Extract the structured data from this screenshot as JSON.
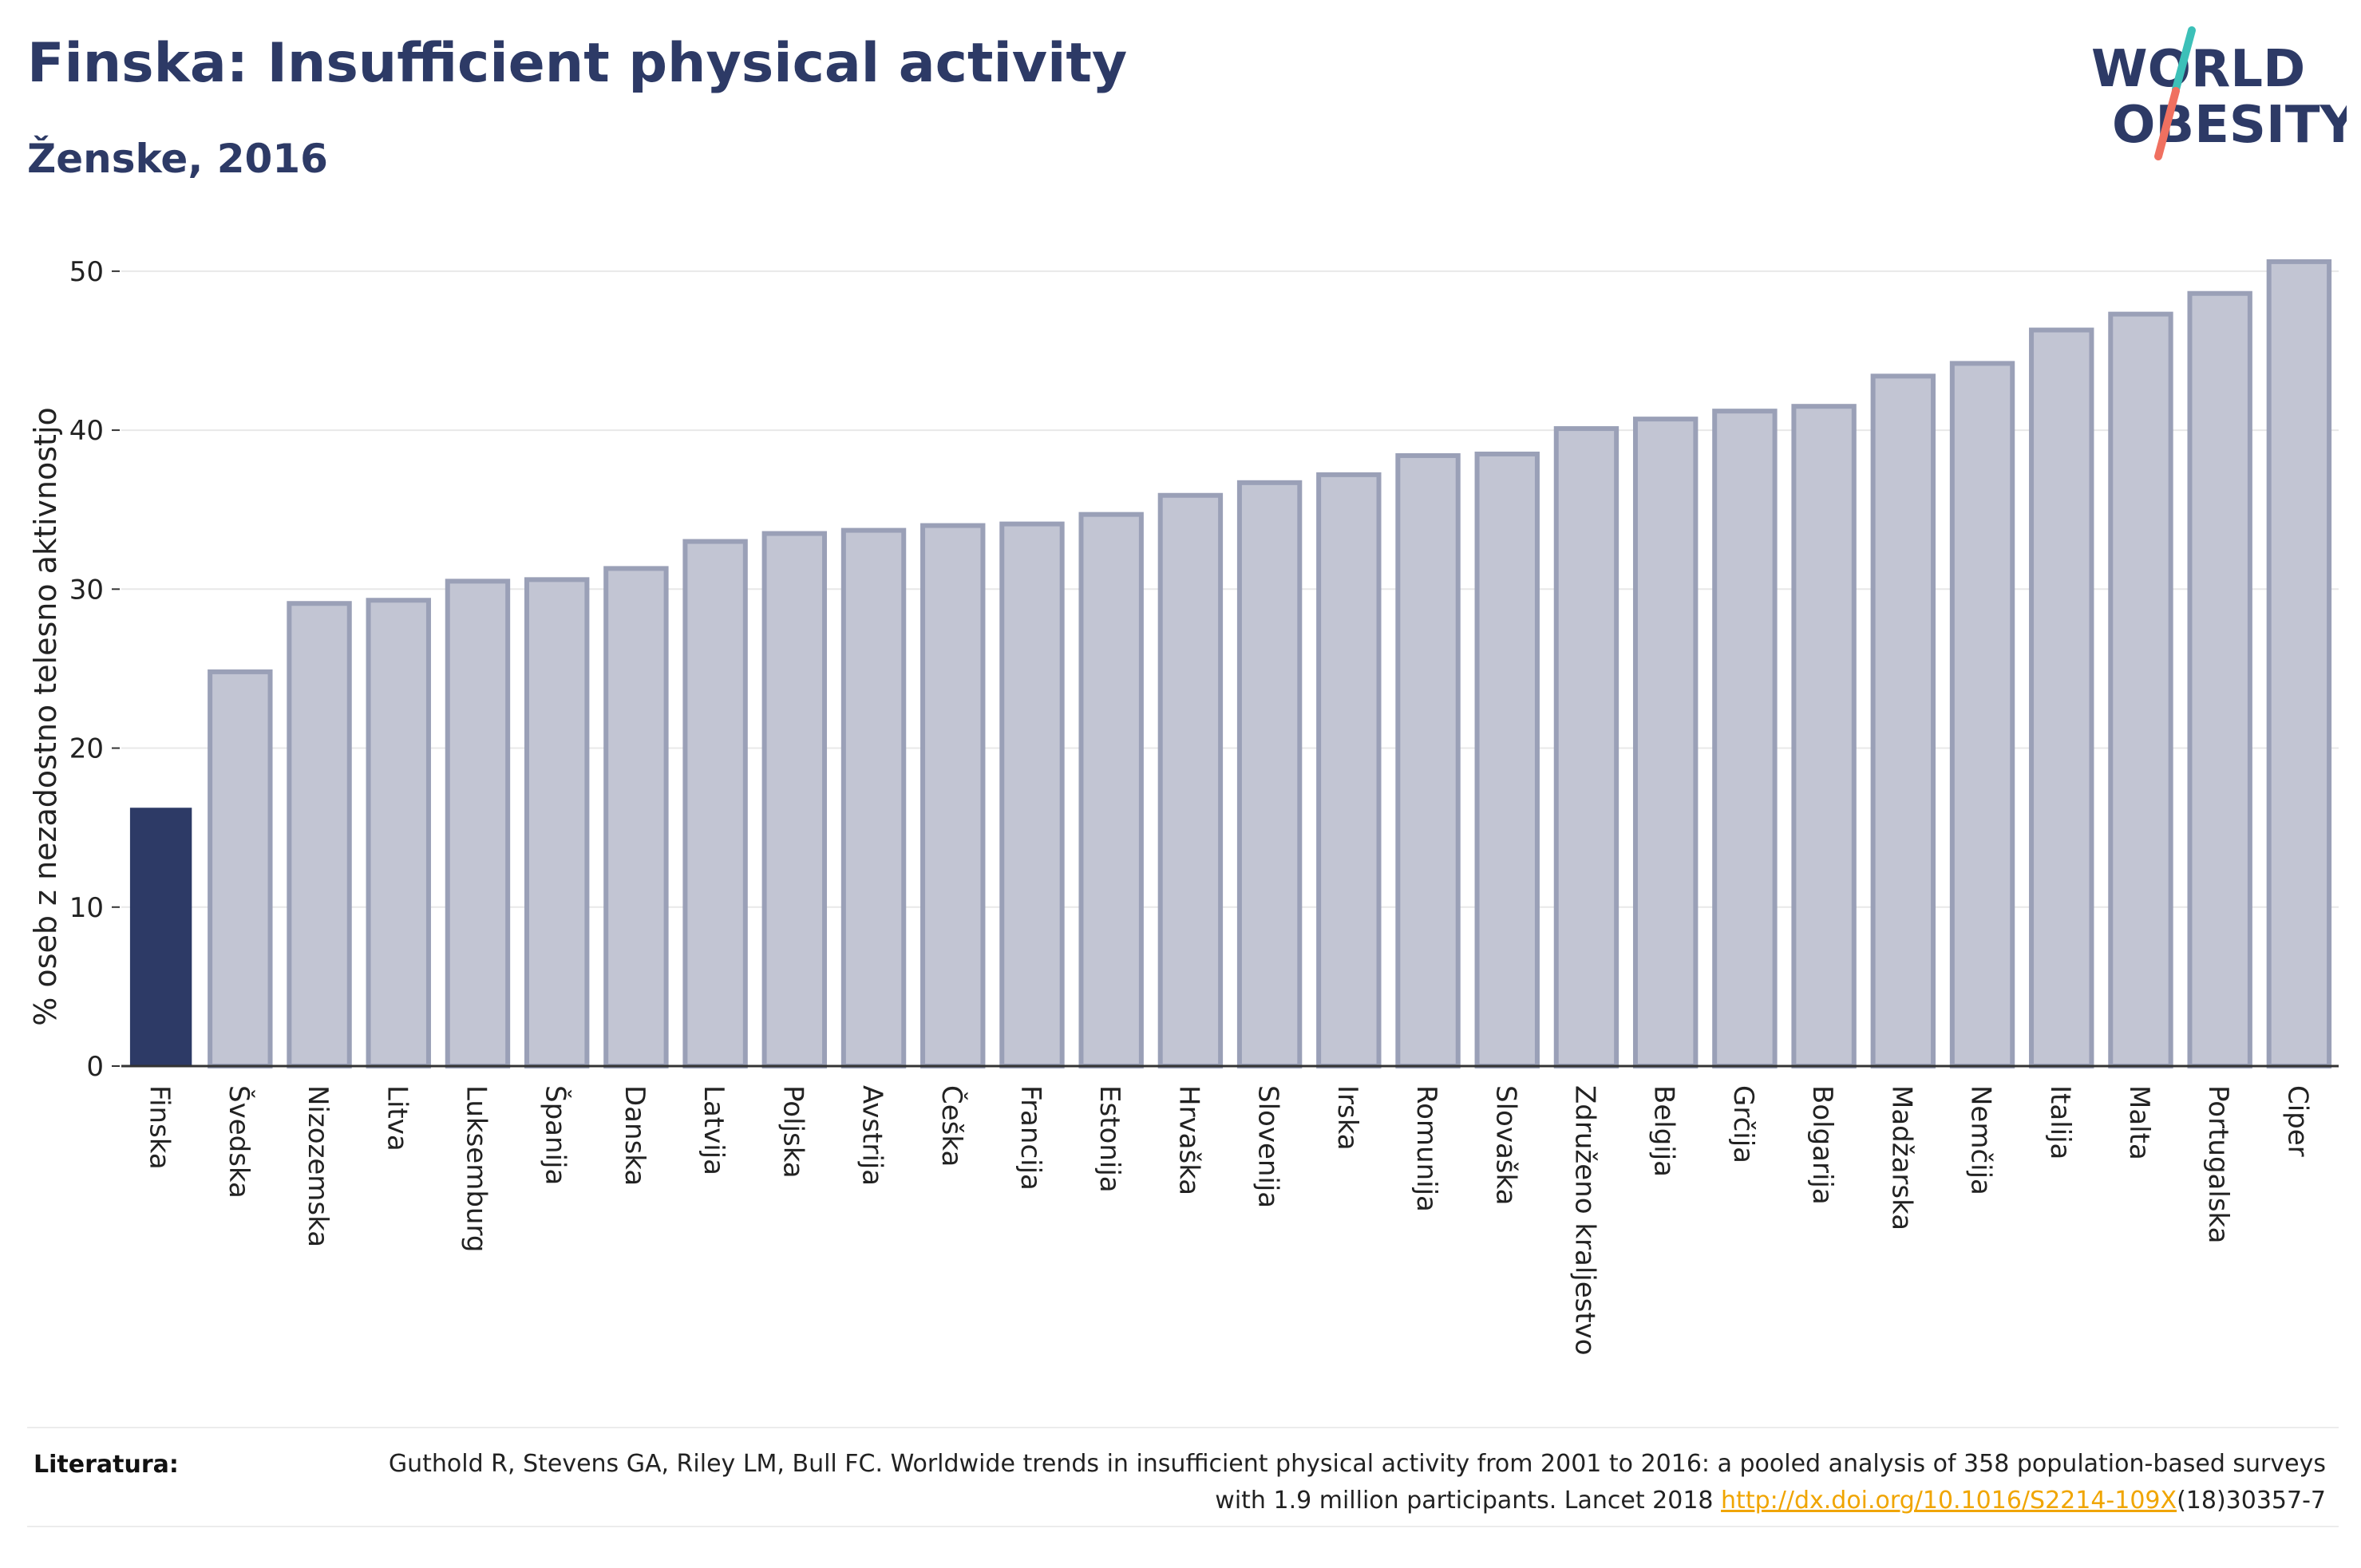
{
  "title": "Finska: Insufficient physical activity",
  "subtitle": "Ženske, 2016",
  "logo": {
    "line1": "WORLD",
    "line2": "OBESITY"
  },
  "colors": {
    "highlight_bar": "#2d3a66",
    "other_bar_fill": "#c2c5d3",
    "other_bar_stroke": "#9aa0b7",
    "title": "#2d3a66",
    "link": "#f0a500",
    "logo_teal": "#3cc0b8",
    "logo_coral": "#f07060"
  },
  "chart_data": {
    "type": "bar",
    "categories": [
      "Finska",
      "Švedska",
      "Nizozemska",
      "Litva",
      "Luksemburg",
      "Španija",
      "Danska",
      "Latvija",
      "Poljska",
      "Avstrija",
      "Češka",
      "Francija",
      "Estonija",
      "Hrvaška",
      "Slovenija",
      "Irska",
      "Romunija",
      "Slovaška",
      "Združeno kraljestvo",
      "Belgija",
      "Grčija",
      "Bolgarija",
      "Madžarska",
      "Nemčija",
      "Italija",
      "Malta",
      "Portugalska",
      "Ciper"
    ],
    "values": [
      16.2,
      24.8,
      29.1,
      29.3,
      30.5,
      30.6,
      31.3,
      33.0,
      33.5,
      33.7,
      34.0,
      34.1,
      34.7,
      35.9,
      36.7,
      37.2,
      38.4,
      38.5,
      40.1,
      40.7,
      41.2,
      41.5,
      43.4,
      44.2,
      46.3,
      47.3,
      48.6,
      50.6
    ],
    "highlight": "Finska",
    "xlabel": "",
    "ylabel": "% oseb z nezadostno telesno aktivnostjo",
    "ylim": [
      0,
      52
    ],
    "yticks": [
      0,
      10,
      20,
      30,
      40,
      50
    ],
    "grid": true
  },
  "references": {
    "label": "Literatura:",
    "text_before": "Guthold R, Stevens GA, Riley LM, Bull FC. Worldwide trends in insufficient physical activity from 2001 to 2016: a pooled analysis of 358 population-based surveys with 1.9 million participants. Lancet 2018 ",
    "link": "http://dx.doi.org/10.1016/S2214-109X",
    "text_after": "(18)30357-7"
  }
}
